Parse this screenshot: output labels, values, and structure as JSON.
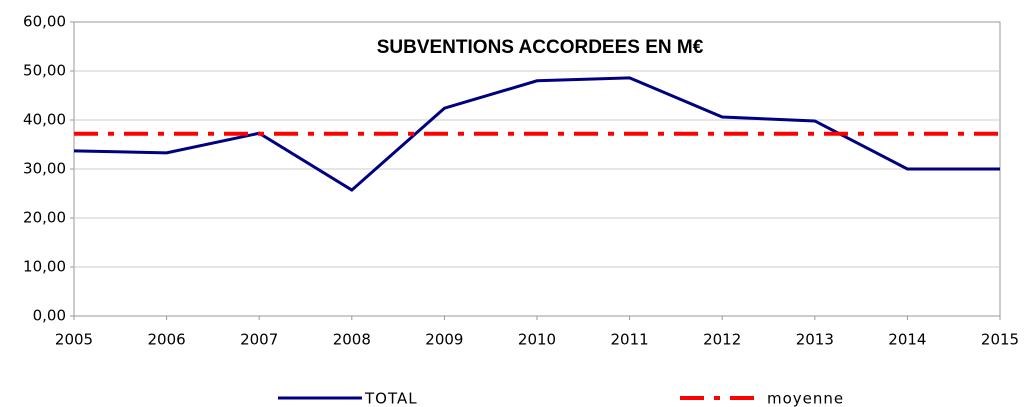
{
  "chart_data": {
    "type": "line",
    "title": "SUBVENTIONS ACCORDEES EN M€",
    "x": [
      2005,
      2006,
      2007,
      2008,
      2009,
      2010,
      2011,
      2012,
      2013,
      2014,
      2015
    ],
    "xlim": [
      2005,
      2015
    ],
    "xticks": [
      2005,
      2006,
      2007,
      2008,
      2009,
      2010,
      2011,
      2012,
      2013,
      2014,
      2015
    ],
    "ylim": [
      0,
      60
    ],
    "yticks": [
      {
        "value": 0,
        "label": "0,00"
      },
      {
        "value": 10,
        "label": "10,00"
      },
      {
        "value": 20,
        "label": "20,00"
      },
      {
        "value": 30,
        "label": "30,00"
      },
      {
        "value": 40,
        "label": "40,00"
      },
      {
        "value": 50,
        "label": "50,00"
      },
      {
        "value": 60,
        "label": "60,00"
      }
    ],
    "grid": true,
    "legend": "bottom",
    "series": [
      {
        "name": "TOTAL",
        "color": "#000080",
        "values": [
          33.7,
          33.3,
          37.3,
          25.7,
          42.4,
          48.0,
          48.6,
          40.6,
          39.8,
          30.0,
          30.0
        ]
      },
      {
        "name": "moyenne",
        "color": "#ff0000",
        "values": [
          37.2,
          37.2,
          37.2,
          37.2,
          37.2,
          37.2,
          37.2,
          37.2,
          37.2,
          37.2,
          37.2
        ]
      }
    ]
  }
}
